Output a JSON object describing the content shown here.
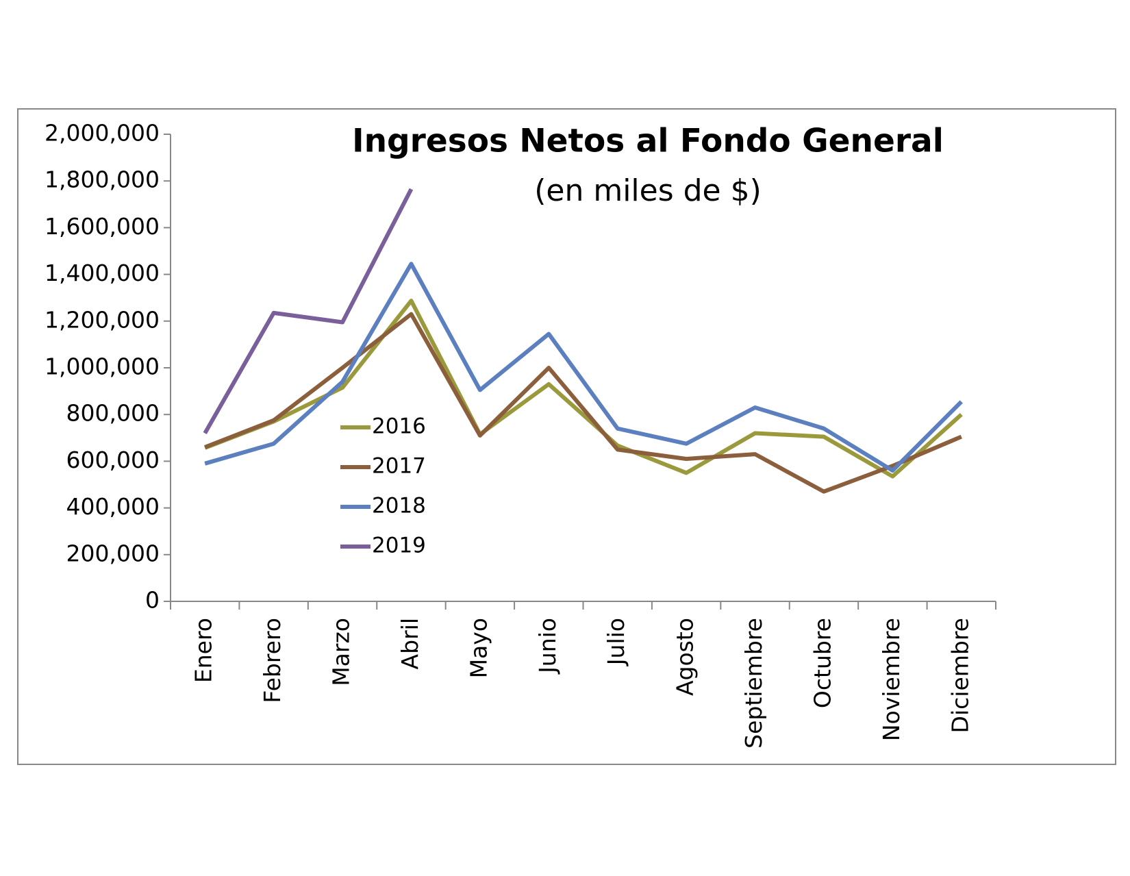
{
  "chart_data": {
    "type": "line",
    "title": "Ingresos Netos al Fondo General",
    "subtitle": "(en miles de $)",
    "categories": [
      "Enero",
      "Febrero",
      "Marzo",
      "Abril",
      "Mayo",
      "Junio",
      "Julio",
      "Agosto",
      "Septiembre",
      "Octubre",
      "Noviembre",
      "Diciembre"
    ],
    "series": [
      {
        "name": "2016",
        "color": "#9a9a3c",
        "values": [
          657000,
          770000,
          915000,
          1287000,
          715000,
          930000,
          667000,
          550000,
          720000,
          705000,
          535000,
          800000
        ]
      },
      {
        "name": "2017",
        "color": "#8b5e3c",
        "values": [
          660000,
          775000,
          1000000,
          1230000,
          710000,
          1000000,
          650000,
          610000,
          630000,
          470000,
          580000,
          705000
        ]
      },
      {
        "name": "2018",
        "color": "#5b7fbf",
        "values": [
          590000,
          675000,
          940000,
          1445000,
          905000,
          1145000,
          740000,
          675000,
          830000,
          740000,
          560000,
          855000
        ]
      },
      {
        "name": "2019",
        "color": "#7a5f9a",
        "values": [
          720000,
          1235000,
          1195000,
          1765000,
          null,
          null,
          null,
          null,
          null,
          null,
          null,
          null
        ]
      }
    ],
    "ylim": [
      0,
      2000000
    ],
    "yticks": [
      0,
      {
        "value": 200000,
        "label": "200,000"
      },
      {
        "value": 400000,
        "label": "400,000"
      },
      {
        "value": 600000,
        "label": "600,000"
      },
      {
        "value": 800000,
        "label": "800,000"
      },
      {
        "value": 1000000,
        "label": "1,000,000"
      },
      {
        "value": 1200000,
        "label": "1,200,000"
      },
      {
        "value": 1400000,
        "label": "1,400,000"
      },
      {
        "value": 1600000,
        "label": "1,600,000"
      },
      {
        "value": 1800000,
        "label": "1,800,000"
      },
      {
        "value": 2000000,
        "label": "2,000,000"
      }
    ],
    "grid": false,
    "legend": "center"
  }
}
